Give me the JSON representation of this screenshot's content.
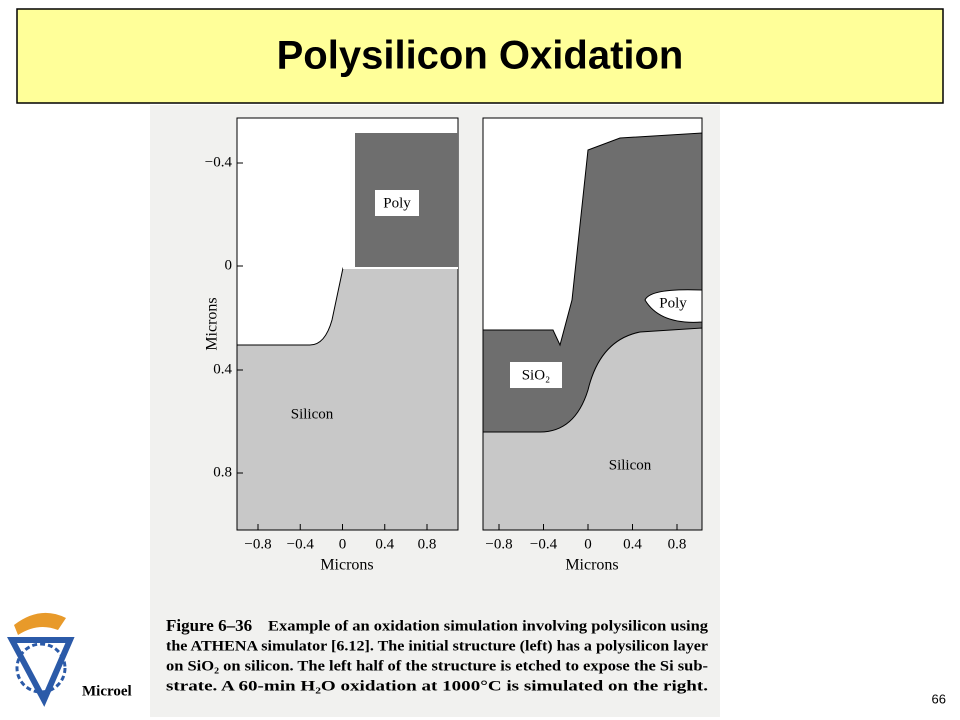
{
  "header": {
    "title": "Polysilicon Oxidation"
  },
  "figure": {
    "y_axis_label": "Microns",
    "y_ticks": [
      "−0.4",
      "0",
      "0.4",
      "0.8"
    ],
    "panels": [
      {
        "x_axis_label": "Microns",
        "x_ticks": [
          "−0.8",
          "−0.4",
          "0",
          "0.4",
          "0.8"
        ],
        "regions": [
          "Poly",
          "Silicon"
        ]
      },
      {
        "x_axis_label": "Microns",
        "x_ticks": [
          "−0.8",
          "−0.4",
          "0",
          "0.4",
          "0.8"
        ],
        "regions": [
          "Poly",
          "SiO₂",
          "Silicon"
        ]
      }
    ],
    "caption": {
      "label": "Figure 6–36",
      "lines": [
        "Example of an oxidation simulation involving polysilicon using",
        "the ATHENA simulator [6.12]. The initial structure (left) has a polysilicon layer",
        "on SiO₂ on silicon. The left half of the structure is etched to expose the Si sub-",
        "strate. A 60-min H₂O oxidation at 1000°C is simulated on the right."
      ]
    }
  },
  "footer": {
    "logo_text": "Microel",
    "page_number": "66"
  }
}
